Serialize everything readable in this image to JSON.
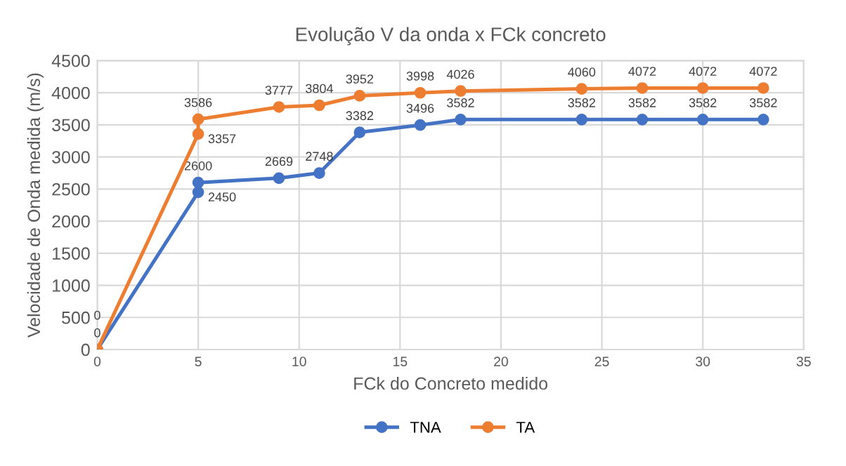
{
  "chart_data": {
    "type": "line",
    "title": "Evolução V da onda x FCk concreto",
    "xlabel": "FCk do Concreto medido",
    "ylabel": "Velocidade de Onda medida (m/s)",
    "series": [
      {
        "name": "TNA",
        "color": "#4472c4",
        "x": [
          0,
          5,
          5,
          9,
          11,
          13,
          16,
          18,
          24,
          27,
          30,
          33
        ],
        "values": [
          0,
          2450,
          2600,
          2669,
          2748,
          3382,
          3496,
          3582,
          3582,
          3582,
          3582,
          3582
        ]
      },
      {
        "name": "TA",
        "color": "#ed7d31",
        "x": [
          0,
          5,
          5,
          9,
          11,
          13,
          16,
          18,
          24,
          27,
          30,
          33
        ],
        "values": [
          0,
          3357,
          3586,
          3777,
          3804,
          3952,
          3998,
          4026,
          4060,
          4072,
          4072,
          4072
        ]
      }
    ],
    "xlim": [
      0,
      35
    ],
    "xticks": [
      0,
      5,
      10,
      15,
      20,
      25,
      30,
      35
    ],
    "ylim": [
      0,
      4500
    ],
    "yticks": [
      0,
      500,
      1000,
      1500,
      2000,
      2500,
      3000,
      3500,
      4000,
      4500
    ],
    "grid": true,
    "legend": "bottom",
    "marker": "circle",
    "line_style": "solid",
    "data_labels": true
  }
}
